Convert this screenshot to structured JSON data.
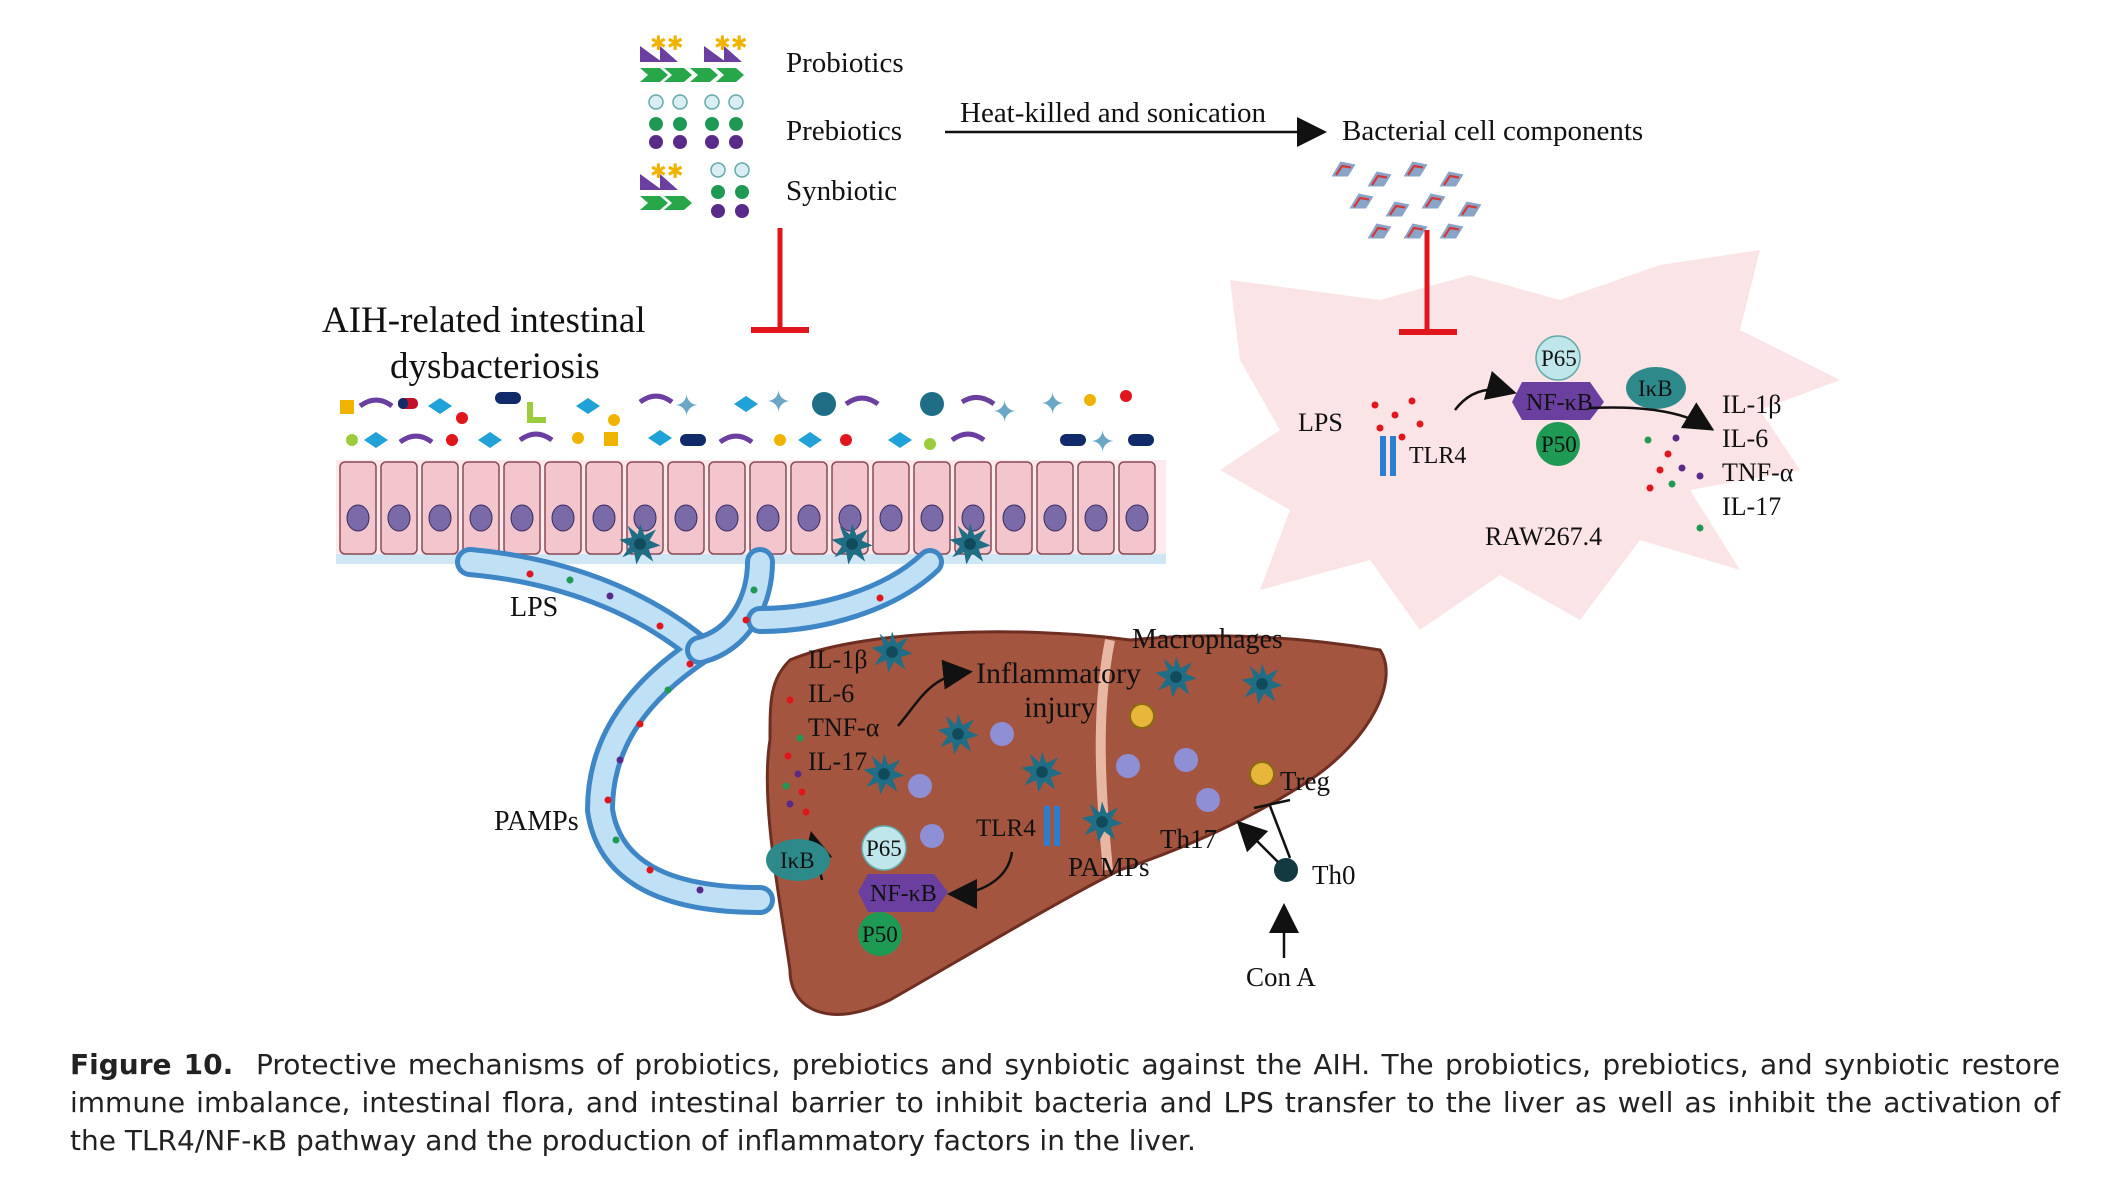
{
  "legend": {
    "probiotics": "Probiotics",
    "prebiotics": "Prebiotics",
    "synbiotic": "Synbiotic"
  },
  "process": {
    "arrow_label": "Heat-killed  and sonication",
    "result": "Bacterial cell components"
  },
  "gut": {
    "title_line1": "AIH-related intestinal",
    "title_line2": "dysbacteriosis",
    "lps": "LPS",
    "pamps": "PAMPs"
  },
  "liver": {
    "cytokines": [
      "IL-1β",
      "IL-6",
      "TNF-α",
      "IL-17"
    ],
    "inflammatory_line1": "Inflammatory",
    "inflammatory_line2": "injury",
    "macrophages": "Macrophages",
    "ikb": "IκB",
    "p65": "P65",
    "nfkb": "NF-κB",
    "p50": "P50",
    "tlr4": "TLR4",
    "pamps": "PAMPs",
    "treg": "Treg",
    "th17": "Th17",
    "th0": "Th0",
    "cona": "Con A"
  },
  "raw": {
    "lps": "LPS",
    "tlr4": "TLR4",
    "p65": "P65",
    "nfkb": "NF-κB",
    "p50": "P50",
    "ikb": "IκB",
    "cytokines": [
      "IL-1β",
      "IL-6",
      "TNF-α",
      "IL-17"
    ],
    "cell_line": "RAW267.4"
  },
  "caption": {
    "label": "Figure 10.",
    "text": "Protective mechanisms of probiotics, prebiotics and synbiotic against the AIH. The probiotics, prebiotics, and synbiotic restore immune imbalance, intestinal flora, and intestinal barrier to inhibit bacteria and LPS transfer to the liver as well as inhibit the activation of the TLR4/NF-κB pathway and the production of inflammatory factors in the liver."
  },
  "colors": {
    "inhibit": "#e0161c",
    "liver": "#a3553f",
    "vessel": "#5aa0d6",
    "cell": "#f3c5cc",
    "starburst": "#fbe4e6",
    "macrophage": "#1f6e86",
    "nfkb": "#6b3fa0",
    "p50": "#1f9a55",
    "p65": "#bfe6ea",
    "ikb": "#2e8a8a"
  }
}
